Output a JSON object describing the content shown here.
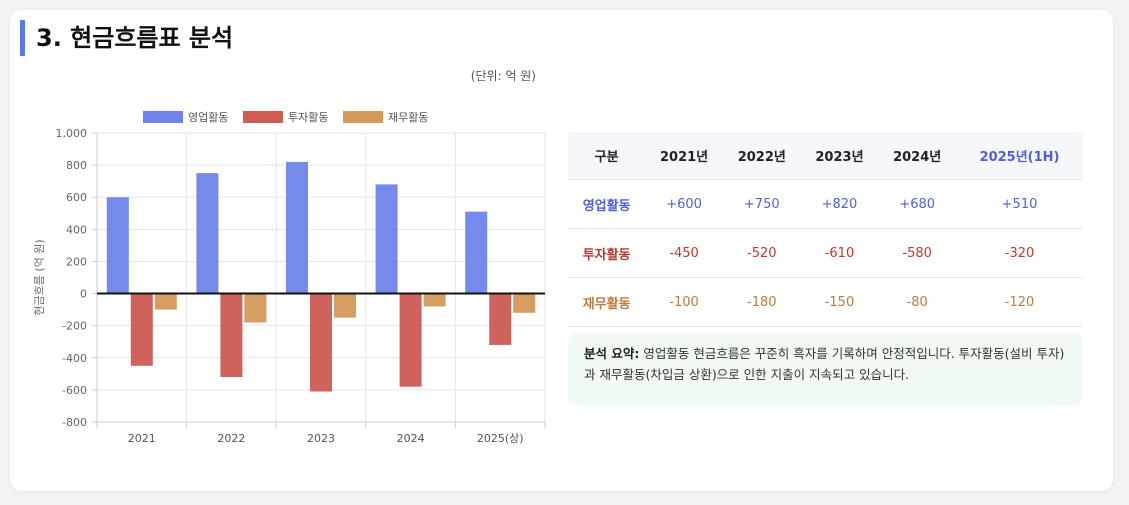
{
  "page": {
    "title": "3. 현금흐름표 분석",
    "unit": "(단위: 억 원)"
  },
  "colors": {
    "operating": "#6f84ea",
    "investing": "#cf5b55",
    "financing": "#d4995a",
    "accent": "#5b78e8"
  },
  "chart_data": {
    "type": "bar",
    "categories": [
      "2021",
      "2022",
      "2023",
      "2024",
      "2025(상)"
    ],
    "series": [
      {
        "name": "영업활동",
        "values": [
          600,
          750,
          820,
          680,
          510
        ]
      },
      {
        "name": "투자활동",
        "values": [
          -450,
          -520,
          -610,
          -580,
          -320
        ]
      },
      {
        "name": "재무활동",
        "values": [
          -100,
          -180,
          -150,
          -80,
          -120
        ]
      }
    ],
    "ylabel": "현금흐름 (억 원)",
    "ylim": [
      -800,
      1000
    ],
    "yticks": [
      "1,000",
      "800",
      "600",
      "400",
      "200",
      "0",
      "-200",
      "-400",
      "-600",
      "-800"
    ],
    "grid": true,
    "legend": "top"
  },
  "table": {
    "headers": [
      "구분",
      "2021년",
      "2022년",
      "2023년",
      "2024년",
      "2025년(1H)"
    ],
    "rows": [
      {
        "label": "영업활동",
        "values": [
          "+600",
          "+750",
          "+820",
          "+680",
          "+510"
        ]
      },
      {
        "label": "투자활동",
        "values": [
          "-450",
          "-520",
          "-610",
          "-580",
          "-320"
        ]
      },
      {
        "label": "재무활동",
        "values": [
          "-100",
          "-180",
          "-150",
          "-80",
          "-120"
        ]
      }
    ]
  },
  "summary": {
    "label": "분석 요약:",
    "text": "영업활동 현금흐름은 꾸준히 흑자를 기록하며 안정적입니다. 투자활동(설비 투자)과 재무활동(차입금 상환)으로 인한 지출이 지속되고 있습니다."
  }
}
